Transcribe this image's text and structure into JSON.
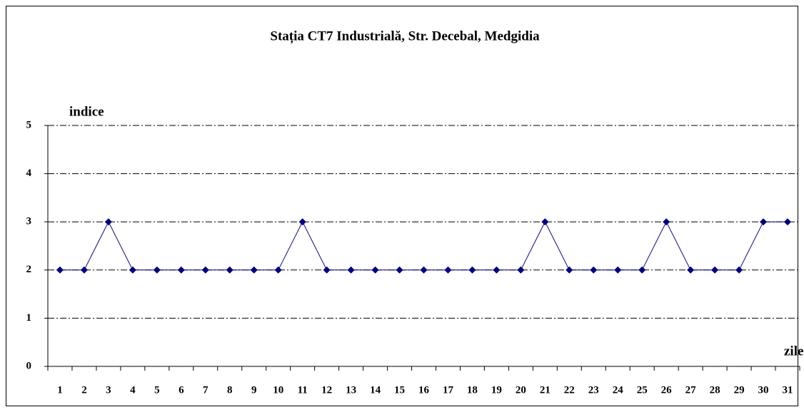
{
  "chart_data": {
    "type": "line",
    "title": "Stația CT7 Industrială, Str. Decebal, Medgidia",
    "y_label": "indice",
    "x_label": "zile",
    "categories": [
      "1",
      "2",
      "3",
      "4",
      "5",
      "6",
      "7",
      "8",
      "9",
      "10",
      "11",
      "12",
      "13",
      "14",
      "15",
      "16",
      "17",
      "18",
      "19",
      "20",
      "21",
      "22",
      "23",
      "24",
      "25",
      "26",
      "27",
      "28",
      "29",
      "30",
      "31"
    ],
    "values": [
      2,
      2,
      3,
      2,
      2,
      2,
      2,
      2,
      2,
      2,
      3,
      2,
      2,
      2,
      2,
      2,
      2,
      2,
      2,
      2,
      3,
      2,
      2,
      2,
      2,
      3,
      2,
      2,
      2,
      3,
      3
    ],
    "color": "#000080",
    "ylim": [
      0,
      5
    ],
    "yticks": [
      0,
      1,
      2,
      3,
      4,
      5
    ],
    "grid": true
  }
}
